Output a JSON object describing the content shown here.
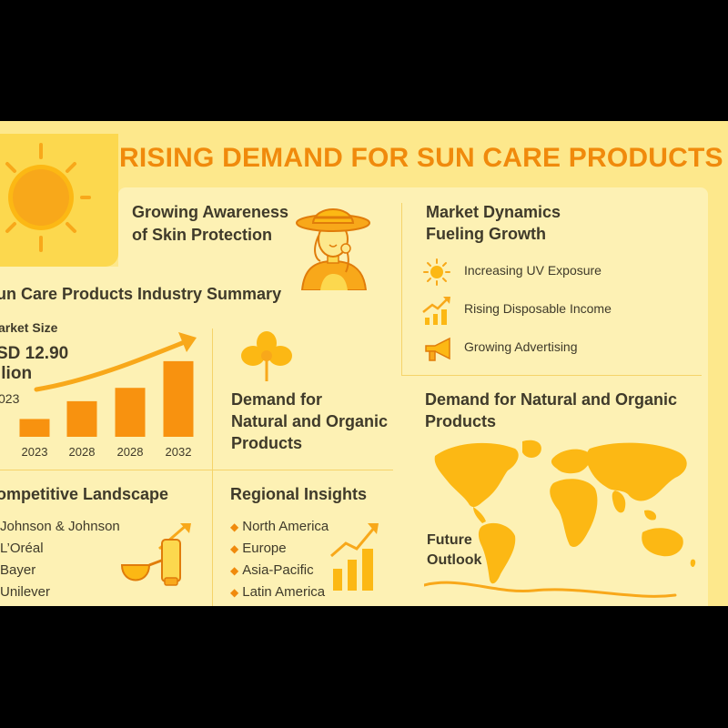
{
  "title": "RISING DEMAND FOR SUN CARE PRODUCTS",
  "awareness": {
    "heading_line1": "Growing Awareness",
    "heading_line2": "of Skin Protection"
  },
  "summary": {
    "heading": "un Care Products Industry Summary",
    "market_size_label": "arket Size",
    "value_line1": "SD 12.90",
    "value_line2": "llion",
    "year": "023"
  },
  "chart_data": {
    "type": "bar",
    "categories": [
      "2023",
      "2028",
      "2028",
      "2032"
    ],
    "values": [
      2,
      4,
      5.5,
      8.5
    ],
    "trend_arrow": true
  },
  "natural_center": {
    "line1": "Demand for",
    "line2": "Natural and Organic",
    "line3": "Products"
  },
  "competitive": {
    "heading": "ompetitive Landscape",
    "items": [
      "Johnson & Johnson",
      "L’Oréal",
      "Bayer",
      "Unilever"
    ]
  },
  "regional": {
    "heading": "Regional Insights",
    "items": [
      "North America",
      "Europe",
      "Asia-Pacific",
      "Latin America"
    ]
  },
  "dynamics": {
    "heading_line1": "Market Dynamics",
    "heading_line2": "Fueling Growth",
    "items": [
      {
        "label": "Increasing UV Exposure",
        "icon": "sun-icon"
      },
      {
        "label": "Rising Disposable Income",
        "icon": "growth-bars-icon"
      },
      {
        "label": "Growing Advertising",
        "icon": "megaphone-icon"
      }
    ]
  },
  "natural_right": {
    "line1": "Demand for Natural and Organic",
    "line2": "Products"
  },
  "future": {
    "line1": "Future",
    "line2": "Outlook"
  },
  "colors": {
    "background": "#fde88c",
    "panel": "#fdf1b4",
    "accent_orange": "#f08a0c",
    "sun_yellow": "#fcb814",
    "text_dark": "#3f3a2a"
  }
}
